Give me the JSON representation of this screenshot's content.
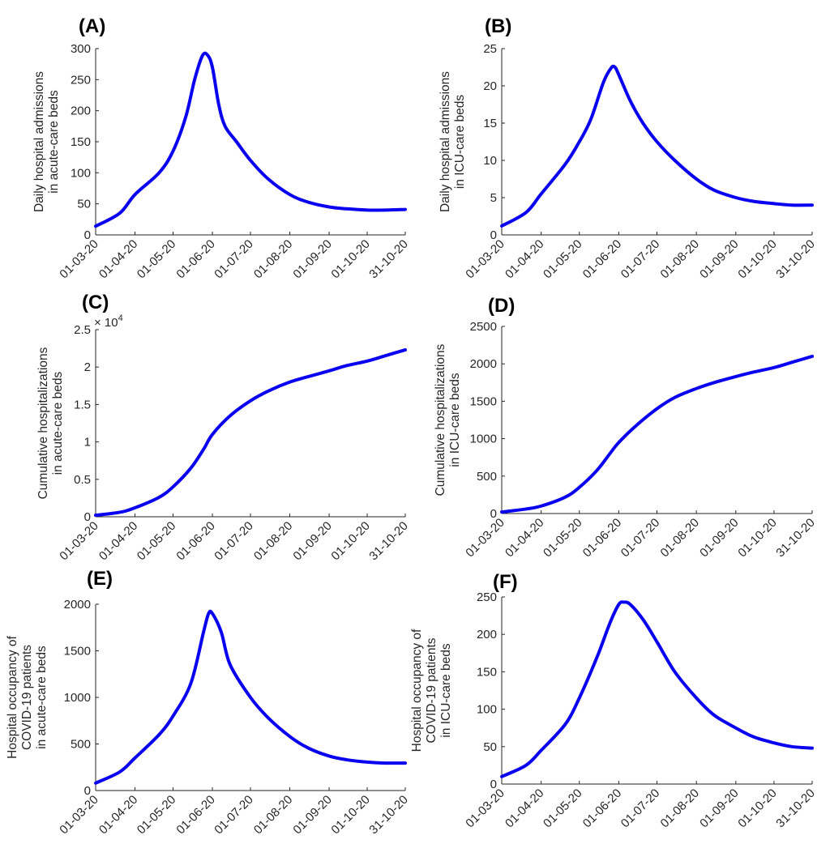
{
  "figure": {
    "line_color": "#0a00f0"
  },
  "chart_data": [
    {
      "panel": "(A)",
      "type": "line",
      "ylabel": [
        "Daily hospital admissions",
        "in acute-care beds"
      ],
      "yticks": [
        "0",
        "50",
        "100",
        "150",
        "200",
        "250",
        "300"
      ],
      "ylim": [
        0,
        300
      ],
      "exponent": "",
      "xticks": [
        "01-03-20",
        "01-04-20",
        "01-05-20",
        "01-06-20",
        "01-07-20",
        "01-08-20",
        "01-09-20",
        "01-10-20",
        "31-10-20"
      ],
      "xlim": [
        "2020-03-01",
        "2020-10-31"
      ],
      "x": [
        "2020-03-01",
        "2020-03-20",
        "2020-04-01",
        "2020-04-20",
        "2020-05-01",
        "2020-05-11",
        "2020-05-18",
        "2020-05-24",
        "2020-05-28",
        "2020-06-01",
        "2020-06-06",
        "2020-06-11",
        "2020-06-20",
        "2020-07-01",
        "2020-07-15",
        "2020-08-01",
        "2020-08-15",
        "2020-09-01",
        "2020-09-15",
        "2020-10-01",
        "2020-10-15",
        "2020-10-31"
      ],
      "series": [
        {
          "values": [
            14,
            35,
            65,
            100,
            135,
            190,
            250,
            288,
            290,
            270,
            210,
            175,
            150,
            120,
            90,
            65,
            53,
            45,
            42,
            40,
            40,
            41
          ]
        }
      ]
    },
    {
      "panel": "(B)",
      "type": "line",
      "ylabel": [
        "Daily hospital admissions",
        "in ICU-care beds"
      ],
      "yticks": [
        "0",
        "5",
        "10",
        "15",
        "20",
        "25"
      ],
      "ylim": [
        0,
        25
      ],
      "exponent": "",
      "xticks": [
        "01-03-20",
        "01-04-20",
        "01-05-20",
        "01-06-20",
        "01-07-20",
        "01-08-20",
        "01-09-20",
        "01-10-20",
        "31-10-20"
      ],
      "xlim": [
        "2020-03-01",
        "2020-10-31"
      ],
      "x": [
        "2020-03-01",
        "2020-03-20",
        "2020-04-01",
        "2020-04-20",
        "2020-05-01",
        "2020-05-10",
        "2020-05-20",
        "2020-05-26",
        "2020-05-29",
        "2020-06-01",
        "2020-06-10",
        "2020-06-20",
        "2020-07-01",
        "2020-07-15",
        "2020-08-01",
        "2020-08-15",
        "2020-09-01",
        "2020-09-15",
        "2020-10-01",
        "2020-10-15",
        "2020-10-31"
      ],
      "series": [
        {
          "values": [
            1.2,
            3.0,
            5.5,
            9.5,
            12.5,
            15.5,
            20.5,
            22.4,
            22.5,
            21.5,
            18.0,
            15.0,
            12.5,
            10.0,
            7.5,
            6.0,
            5.0,
            4.5,
            4.2,
            4.0,
            4.0
          ]
        }
      ]
    },
    {
      "panel": "(C)",
      "type": "line",
      "ylabel": [
        "Cumulative hospitalizations",
        "in acute-care beds"
      ],
      "yticks": [
        "0",
        "0.5",
        "1",
        "1.5",
        "2",
        "2.5"
      ],
      "ylim": [
        0,
        2.5
      ],
      "exponent": "× 10",
      "exponent_power": "4",
      "xticks": [
        "01-03-20",
        "01-04-20",
        "01-05-20",
        "01-06-20",
        "01-07-20",
        "01-08-20",
        "01-09-20",
        "01-10-20",
        "31-10-20"
      ],
      "xlim": [
        "2020-03-01",
        "2020-10-31"
      ],
      "x": [
        "2020-03-01",
        "2020-03-20",
        "2020-04-01",
        "2020-04-20",
        "2020-05-01",
        "2020-05-15",
        "2020-05-25",
        "2020-06-01",
        "2020-06-15",
        "2020-07-01",
        "2020-07-15",
        "2020-08-01",
        "2020-08-15",
        "2020-09-01",
        "2020-09-15",
        "2020-10-01",
        "2020-10-15",
        "2020-10-31"
      ],
      "series": [
        {
          "values": [
            0.02,
            0.06,
            0.12,
            0.26,
            0.4,
            0.65,
            0.9,
            1.1,
            1.35,
            1.55,
            1.68,
            1.8,
            1.87,
            1.95,
            2.02,
            2.08,
            2.15,
            2.23
          ]
        }
      ]
    },
    {
      "panel": "(D)",
      "type": "line",
      "ylabel": [
        "Cumulative hospitalizations",
        "in ICU-care beds"
      ],
      "yticks": [
        "0",
        "500",
        "1000",
        "1500",
        "2000",
        "2500"
      ],
      "ylim": [
        0,
        2500
      ],
      "exponent": "",
      "xticks": [
        "01-03-20",
        "01-04-20",
        "01-05-20",
        "01-06-20",
        "01-07-20",
        "01-08-20",
        "01-09-20",
        "01-10-20",
        "31-10-20"
      ],
      "xlim": [
        "2020-03-01",
        "2020-10-31"
      ],
      "x": [
        "2020-03-01",
        "2020-03-20",
        "2020-04-01",
        "2020-04-20",
        "2020-05-01",
        "2020-05-15",
        "2020-05-25",
        "2020-06-01",
        "2020-06-15",
        "2020-07-01",
        "2020-07-15",
        "2020-08-01",
        "2020-08-15",
        "2020-09-01",
        "2020-09-15",
        "2020-10-01",
        "2020-10-15",
        "2020-10-31"
      ],
      "series": [
        {
          "values": [
            20,
            60,
            100,
            220,
            350,
            580,
            800,
            950,
            1180,
            1400,
            1550,
            1670,
            1750,
            1830,
            1890,
            1950,
            2020,
            2100
          ]
        }
      ]
    },
    {
      "panel": "(E)",
      "type": "line",
      "ylabel": [
        "Hospital occupancy of",
        "COVID-19 patients",
        "in acute-care beds"
      ],
      "yticks": [
        "0",
        "500",
        "1000",
        "1500",
        "2000"
      ],
      "ylim": [
        0,
        2000
      ],
      "exponent": "",
      "xticks": [
        "01-03-20",
        "01-04-20",
        "01-05-20",
        "01-06-20",
        "01-07-20",
        "01-08-20",
        "01-09-20",
        "01-10-20",
        "31-10-20"
      ],
      "xlim": [
        "2020-03-01",
        "2020-10-31"
      ],
      "x": [
        "2020-03-01",
        "2020-03-20",
        "2020-04-01",
        "2020-04-20",
        "2020-05-01",
        "2020-05-15",
        "2020-05-25",
        "2020-05-29",
        "2020-06-01",
        "2020-06-08",
        "2020-06-15",
        "2020-07-01",
        "2020-07-15",
        "2020-08-01",
        "2020-08-15",
        "2020-09-01",
        "2020-09-15",
        "2020-10-01",
        "2020-10-15",
        "2020-10-31"
      ],
      "series": [
        {
          "values": [
            80,
            200,
            350,
            600,
            800,
            1150,
            1700,
            1900,
            1900,
            1700,
            1350,
            1000,
            780,
            580,
            460,
            370,
            330,
            305,
            295,
            295
          ]
        }
      ]
    },
    {
      "panel": "(F)",
      "type": "line",
      "ylabel": [
        "Hospital occupancy of",
        "COVID-19 patients",
        "in ICU-care beds"
      ],
      "yticks": [
        "0",
        "50",
        "100",
        "150",
        "200",
        "250"
      ],
      "ylim": [
        0,
        250
      ],
      "exponent": "",
      "xticks": [
        "01-03-20",
        "01-04-20",
        "01-05-20",
        "01-06-20",
        "01-07-20",
        "01-08-20",
        "01-09-20",
        "01-10-20",
        "31-10-20"
      ],
      "xlim": [
        "2020-03-01",
        "2020-10-31"
      ],
      "x": [
        "2020-03-01",
        "2020-03-20",
        "2020-04-01",
        "2020-04-20",
        "2020-05-01",
        "2020-05-15",
        "2020-05-25",
        "2020-06-01",
        "2020-06-05",
        "2020-06-10",
        "2020-06-20",
        "2020-07-01",
        "2020-07-15",
        "2020-08-01",
        "2020-08-15",
        "2020-09-01",
        "2020-09-15",
        "2020-10-01",
        "2020-10-15",
        "2020-10-31"
      ],
      "series": [
        {
          "values": [
            10,
            25,
            45,
            80,
            115,
            170,
            215,
            240,
            243,
            240,
            220,
            190,
            150,
            115,
            92,
            75,
            63,
            55,
            50,
            48
          ]
        }
      ]
    }
  ]
}
